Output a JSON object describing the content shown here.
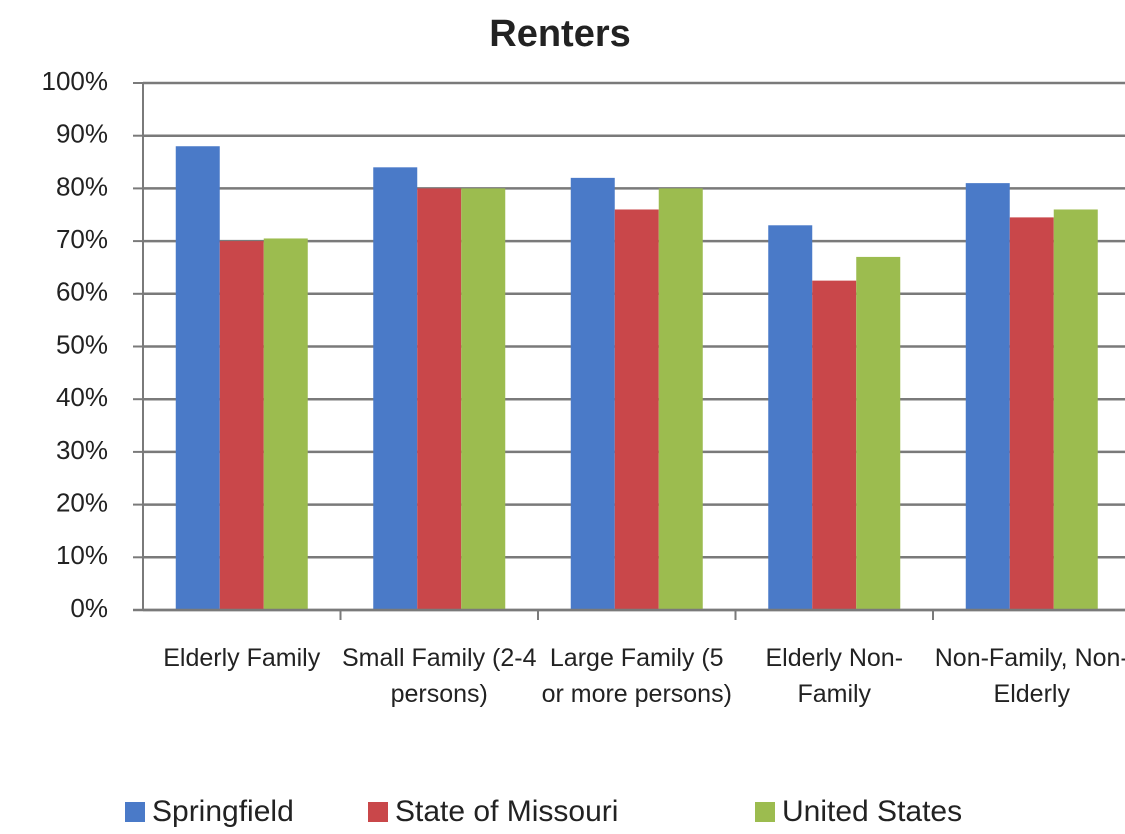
{
  "chart_data": {
    "type": "bar",
    "title": "Renters",
    "categories": [
      "Elderly Family",
      "Small Family (2-4 persons)",
      "Large Family (5 or more persons)",
      "Elderly Non-Family",
      "Non-Family, Non-Elderly"
    ],
    "series": [
      {
        "name": "Springfield",
        "color": "#4a7ac8",
        "values": [
          88,
          84,
          82,
          73,
          81
        ]
      },
      {
        "name": "State of Missouri",
        "color": "#c9474a",
        "values": [
          70,
          80,
          76,
          62.5,
          74.5
        ]
      },
      {
        "name": "United States",
        "color": "#9cbc4f",
        "values": [
          70.5,
          80,
          80,
          67,
          76
        ]
      }
    ],
    "ylim": [
      0,
      100
    ],
    "yticks": [
      {
        "value": 0,
        "label": "0%"
      },
      {
        "value": 10,
        "label": "10%"
      },
      {
        "value": 20,
        "label": "20%"
      },
      {
        "value": 30,
        "label": "30%"
      },
      {
        "value": 40,
        "label": "40%"
      },
      {
        "value": 50,
        "label": "50%"
      },
      {
        "value": 60,
        "label": "60%"
      },
      {
        "value": 70,
        "label": "70%"
      },
      {
        "value": 80,
        "label": "80%"
      },
      {
        "value": 90,
        "label": "90%"
      },
      {
        "value": 100,
        "label": "100%"
      }
    ],
    "grid": true,
    "legend": "bottom"
  }
}
